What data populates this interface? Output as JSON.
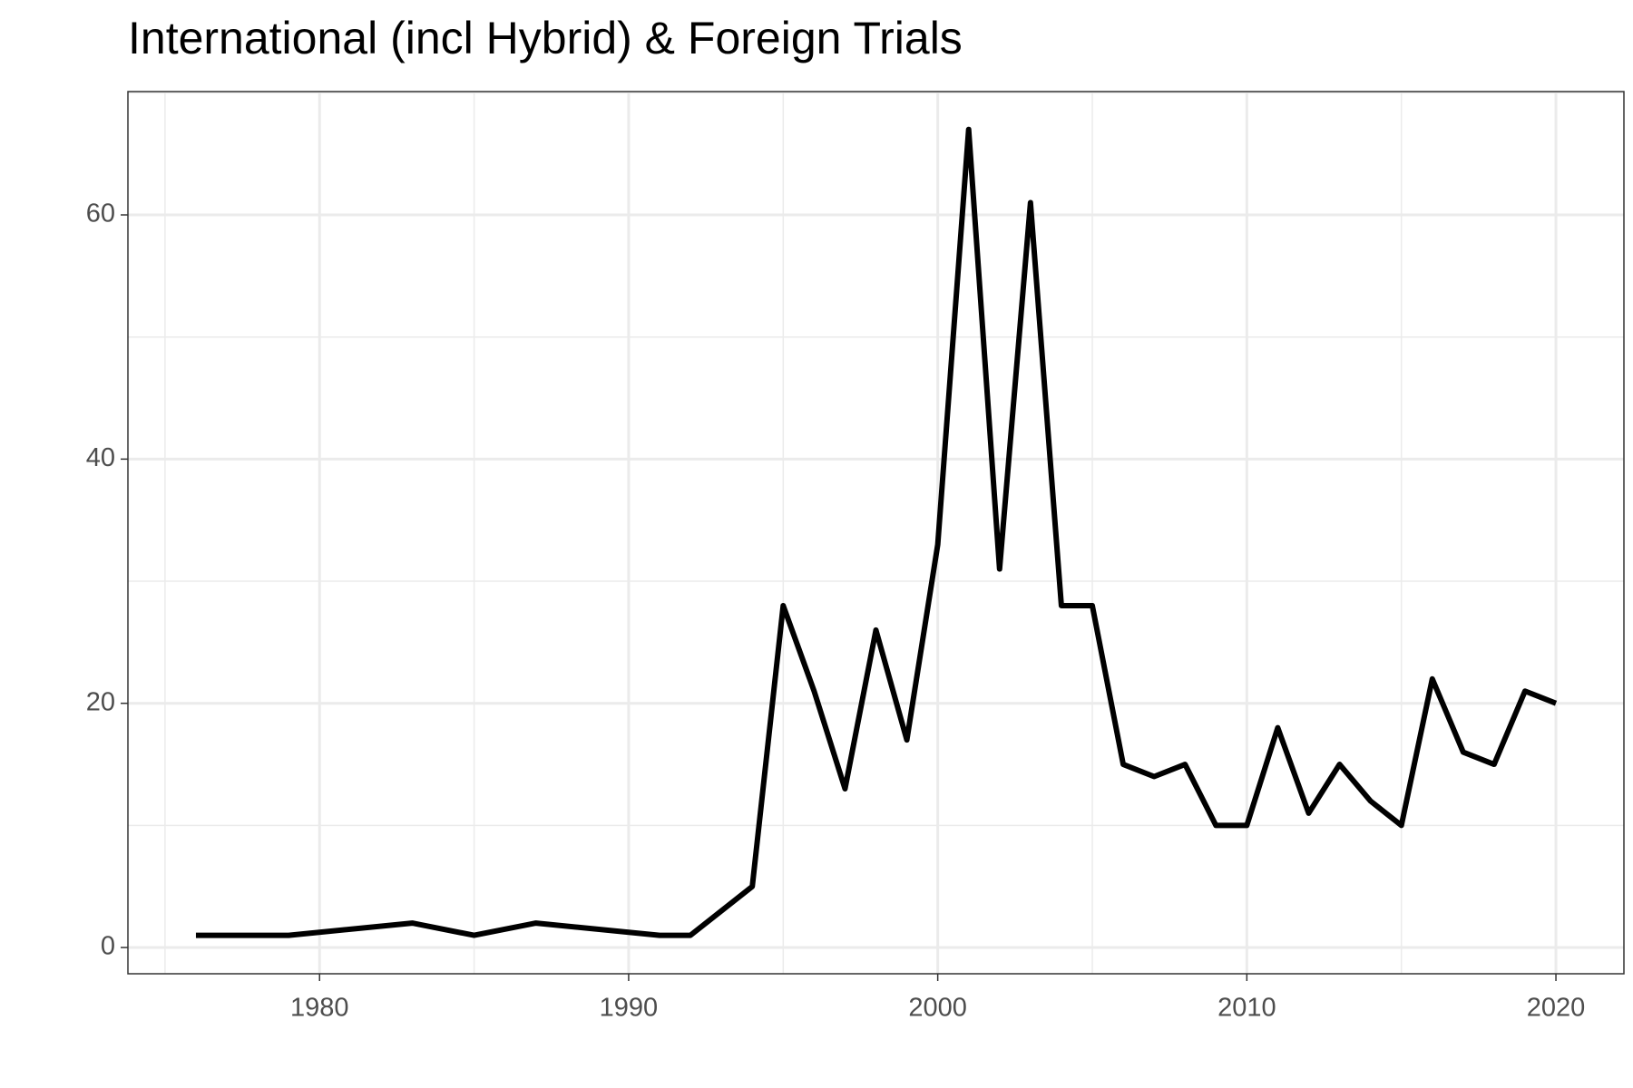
{
  "chart_data": {
    "type": "line",
    "title": "International (incl Hybrid) & Foreign Trials",
    "x": [
      1976,
      1977,
      1978,
      1979,
      1983,
      1985,
      1987,
      1991,
      1992,
      1994,
      1995,
      1996,
      1997,
      1998,
      1999,
      2000,
      2001,
      2002,
      2003,
      2004,
      2005,
      2006,
      2007,
      2008,
      2009,
      2010,
      2011,
      2012,
      2013,
      2014,
      2015,
      2016,
      2017,
      2018,
      2019,
      2020
    ],
    "series": [
      {
        "color": "#000000",
        "values": [
          1,
          1,
          1,
          1,
          2,
          1,
          2,
          1,
          1,
          5,
          28,
          21,
          13,
          26,
          17,
          33,
          67,
          31,
          61,
          28,
          28,
          15,
          14,
          15,
          10,
          10,
          18,
          11,
          15,
          12,
          10,
          22,
          16,
          15,
          21,
          20
        ]
      }
    ],
    "xlim": [
      1973.8,
      2022.2
    ],
    "xticks": [
      1980,
      1990,
      2000,
      2010,
      2020
    ],
    "ylim": [
      -2.15,
      70.1
    ],
    "yticks": [
      0,
      20,
      40,
      60
    ],
    "grid": true
  }
}
